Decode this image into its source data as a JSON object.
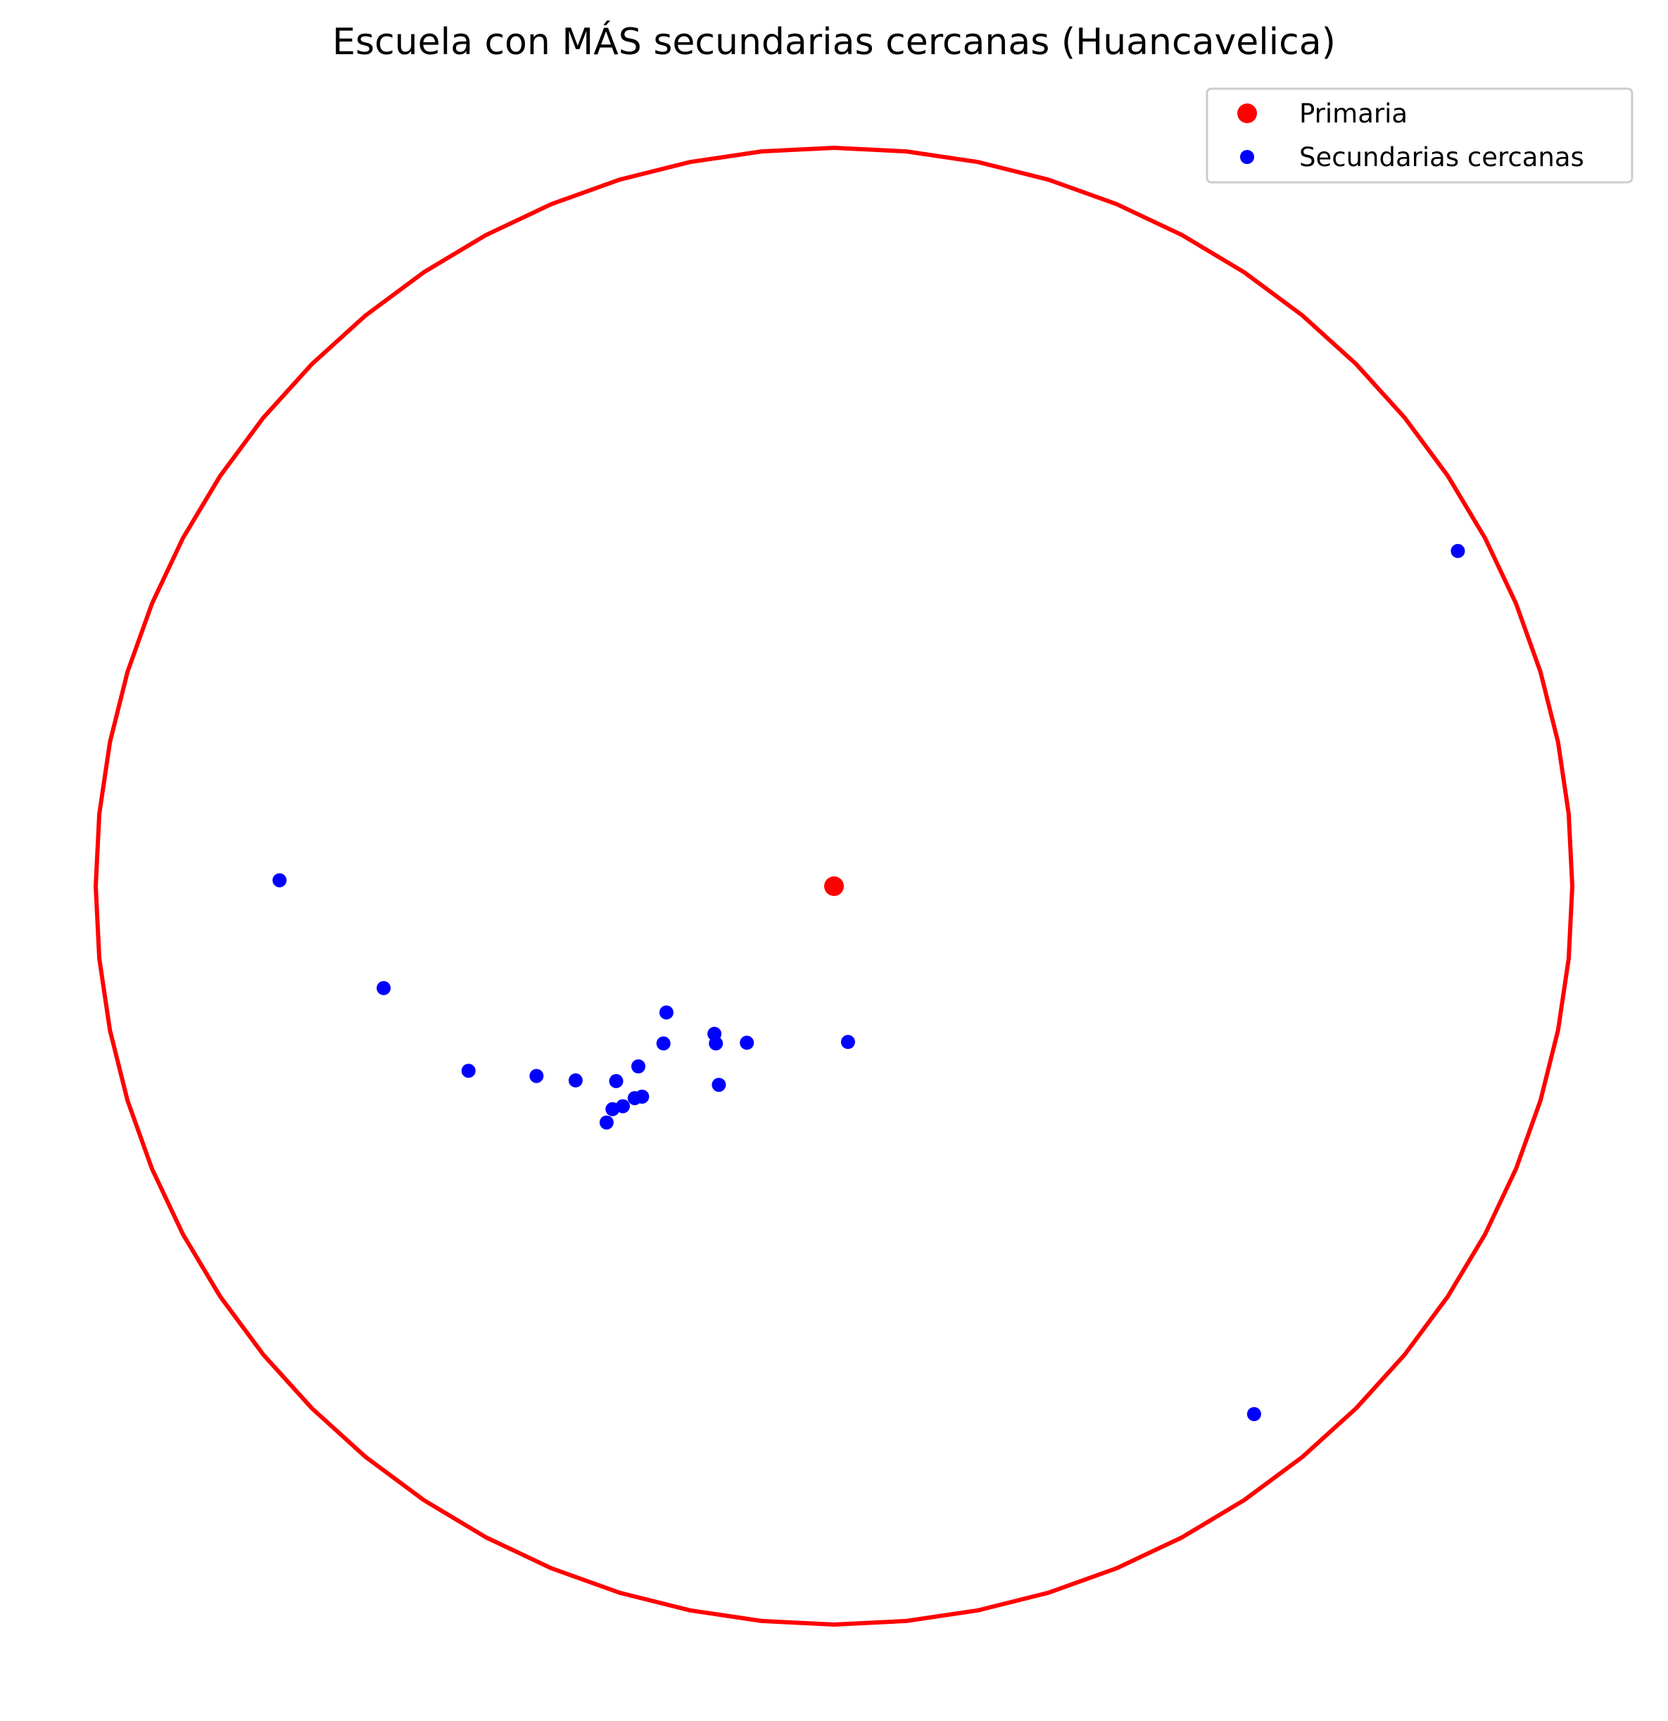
{
  "chart_data": {
    "type": "scatter",
    "title": "Escuela con MÁS secundarias cercanas (Huancavelica)",
    "xlabel": "",
    "ylabel": "",
    "axes_visible": false,
    "grid": false,
    "aspect": "equal",
    "xlim": [
      -1.09,
      1.09
    ],
    "ylim": [
      -1.09,
      1.09
    ],
    "legend": {
      "placement": "top-right",
      "entries": [
        "Primaria",
        "Secundarias cercanas"
      ]
    },
    "circle": {
      "center": [
        0,
        0
      ],
      "radius": 1.0,
      "color": "#ff0000"
    },
    "series": [
      {
        "name": "Primaria",
        "marker": "circle",
        "color": "#ff0000",
        "points": [
          [
            0.0,
            0.0
          ]
        ]
      },
      {
        "name": "Secundarias cercanas",
        "marker": "circle",
        "color": "#0000ff",
        "points": [
          [
            0.845,
            0.454
          ],
          [
            -0.751,
            0.008
          ],
          [
            -0.61,
            -0.138
          ],
          [
            -0.495,
            -0.25
          ],
          [
            -0.403,
            -0.257
          ],
          [
            -0.35,
            -0.263
          ],
          [
            -0.295,
            -0.264
          ],
          [
            -0.265,
            -0.244
          ],
          [
            -0.231,
            -0.213
          ],
          [
            -0.227,
            -0.171
          ],
          [
            -0.16,
            -0.213
          ],
          [
            -0.27,
            -0.287
          ],
          [
            -0.26,
            -0.285
          ],
          [
            -0.3,
            -0.302
          ],
          [
            -0.286,
            -0.298
          ],
          [
            -0.308,
            -0.32
          ],
          [
            -0.162,
            -0.2
          ],
          [
            -0.118,
            -0.212
          ],
          [
            0.019,
            -0.211
          ],
          [
            -0.156,
            -0.269
          ],
          [
            0.569,
            -0.715
          ]
        ]
      }
    ]
  }
}
